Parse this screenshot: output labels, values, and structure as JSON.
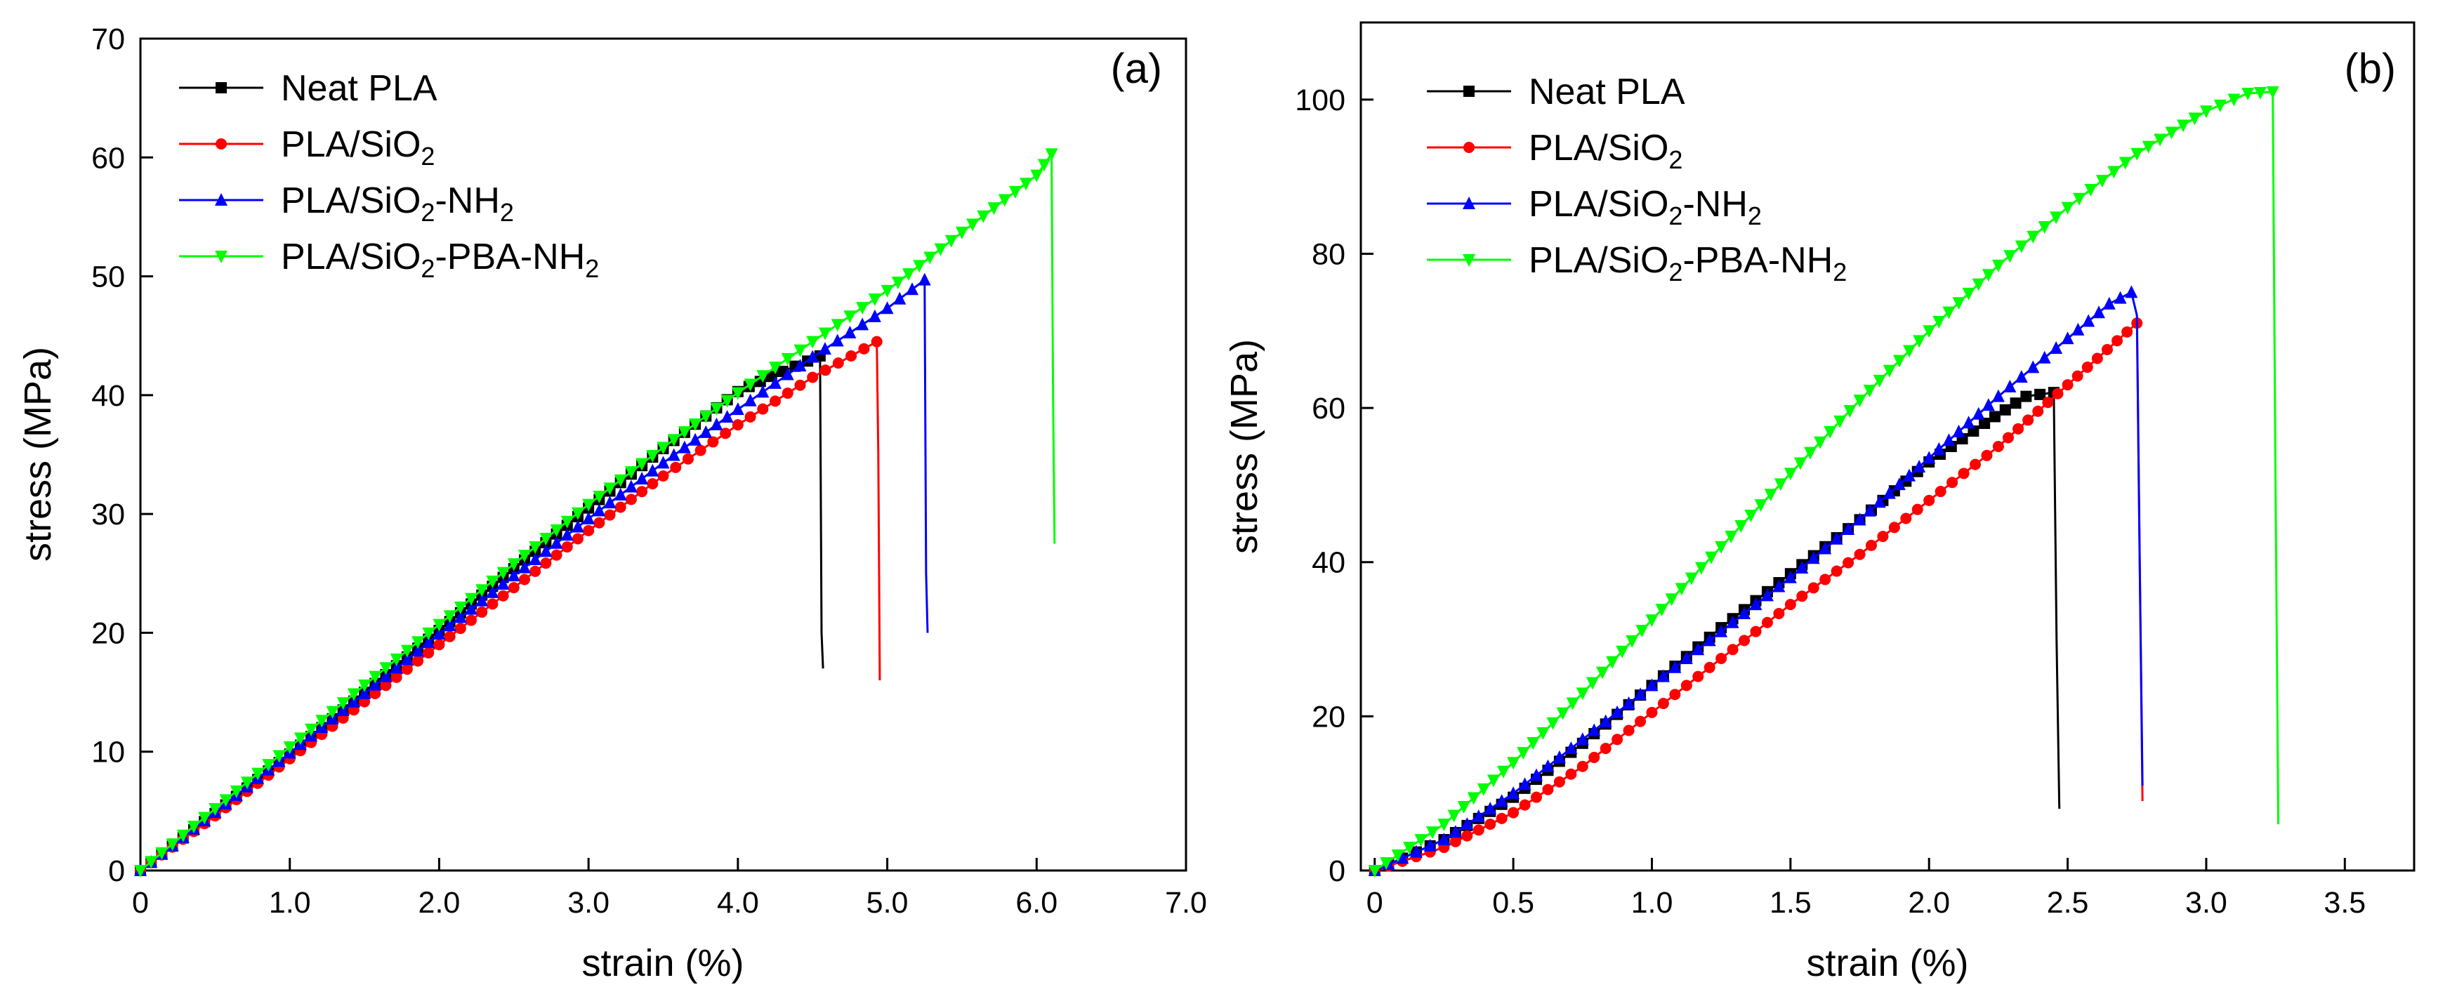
{
  "chart_data": [
    {
      "type": "line",
      "panel_label": "(a)",
      "xlabel": "strain (%)",
      "ylabel": "stress (MPa)",
      "xlim": [
        0,
        7.0
      ],
      "ylim": [
        0,
        70
      ],
      "xticks": [
        0,
        1.0,
        2.0,
        3.0,
        4.0,
        5.0,
        6.0,
        7.0
      ],
      "xtick_labels": [
        "0",
        "1.0",
        "2.0",
        "3.0",
        "4.0",
        "5.0",
        "6.0",
        "7.0"
      ],
      "yticks": [
        0,
        10,
        20,
        30,
        40,
        50,
        60,
        70
      ],
      "ytick_labels": [
        "0",
        "10",
        "20",
        "30",
        "40",
        "50",
        "60",
        "70"
      ],
      "grid": false,
      "legend_position": "top-left",
      "series": [
        {
          "key": "neat-pla",
          "name": "Neat PLA",
          "legend": [
            {
              "t": "Neat PLA"
            }
          ],
          "color": "#000000",
          "marker": "square",
          "x": [
            0,
            0.5,
            1.0,
            1.5,
            2.0,
            2.5,
            3.0,
            3.5,
            4.0,
            4.3,
            4.55,
            4.56,
            4.57
          ],
          "y": [
            0,
            4.8,
            9.8,
            15.0,
            20.2,
            25.4,
            30.5,
            35.5,
            40.3,
            42.0,
            43.3,
            20.0,
            17.0
          ]
        },
        {
          "key": "pla-sio2",
          "name": "PLA/SiO2",
          "legend": [
            {
              "t": "PLA/SiO"
            },
            {
              "t": "2",
              "sub": true
            }
          ],
          "color": "#ff0000",
          "marker": "circle",
          "x": [
            0,
            0.5,
            1.0,
            1.5,
            2.0,
            2.5,
            3.0,
            3.5,
            4.0,
            4.5,
            4.93,
            4.94,
            4.95
          ],
          "y": [
            0,
            4.6,
            9.4,
            14.2,
            19.0,
            23.8,
            28.6,
            33.2,
            37.5,
            41.5,
            44.5,
            35.0,
            16.0
          ]
        },
        {
          "key": "pla-sio2-nh2",
          "name": "PLA/SiO2-NH2",
          "legend": [
            {
              "t": "PLA/SiO"
            },
            {
              "t": "2",
              "sub": true
            },
            {
              "t": "-NH"
            },
            {
              "t": "2",
              "sub": true
            }
          ],
          "color": "#0000ff",
          "marker": "triangle-up",
          "x": [
            0,
            0.5,
            1.0,
            1.5,
            2.0,
            2.5,
            3.0,
            3.5,
            4.0,
            4.5,
            5.0,
            5.25,
            5.26,
            5.27
          ],
          "y": [
            0,
            4.9,
            9.9,
            14.9,
            19.9,
            24.8,
            29.6,
            34.3,
            38.8,
            43.2,
            47.3,
            49.7,
            25.0,
            20.0
          ]
        },
        {
          "key": "pla-sio2-pba-nh2",
          "name": "PLA/SiO2-PBA-NH2",
          "legend": [
            {
              "t": "PLA/SiO"
            },
            {
              "t": "2",
              "sub": true
            },
            {
              "t": "-PBA-NH"
            },
            {
              "t": "2",
              "sub": true
            }
          ],
          "color": "#00ff00",
          "marker": "triangle-down",
          "x": [
            0,
            0.5,
            1.0,
            1.5,
            2.0,
            2.5,
            3.0,
            3.5,
            4.0,
            4.5,
            5.0,
            5.5,
            6.0,
            6.1,
            6.11,
            6.12
          ],
          "y": [
            0,
            5.2,
            10.4,
            15.6,
            20.7,
            25.8,
            30.8,
            35.6,
            40.2,
            44.5,
            48.8,
            53.7,
            58.5,
            60.3,
            40.0,
            27.5
          ]
        }
      ]
    },
    {
      "type": "line",
      "panel_label": "(b)",
      "xlabel": "strain (%)",
      "ylabel": "stress (MPa)",
      "xlim": [
        -0.05,
        3.75
      ],
      "ylim": [
        0,
        110
      ],
      "xticks": [
        0,
        0.5,
        1.0,
        1.5,
        2.0,
        2.5,
        3.0,
        3.5
      ],
      "xtick_labels": [
        "0",
        "0.5",
        "1.0",
        "1.5",
        "2.0",
        "2.5",
        "3.0",
        "3.5"
      ],
      "yticks": [
        0,
        20,
        40,
        60,
        80,
        100
      ],
      "ytick_labels": [
        "0",
        "20",
        "40",
        "60",
        "80",
        "100"
      ],
      "grid": false,
      "legend_position": "top-left",
      "series": [
        {
          "key": "neat-pla",
          "name": "Neat PLA",
          "legend": [
            {
              "t": "Neat PLA"
            }
          ],
          "color": "#000000",
          "marker": "square",
          "x": [
            0,
            0.25,
            0.5,
            0.75,
            1.0,
            1.25,
            1.5,
            1.75,
            2.0,
            2.2,
            2.35,
            2.45,
            2.46,
            2.47
          ],
          "y": [
            0,
            4.0,
            9.5,
            16.5,
            24.0,
            31.5,
            38.5,
            45.5,
            53.0,
            58.0,
            61.5,
            62.0,
            30.0,
            8.0
          ]
        },
        {
          "key": "pla-sio2",
          "name": "PLA/SiO2",
          "legend": [
            {
              "t": "PLA/SiO"
            },
            {
              "t": "2",
              "sub": true
            }
          ],
          "color": "#ff0000",
          "marker": "circle",
          "x": [
            0,
            0.25,
            0.5,
            0.75,
            1.0,
            1.25,
            1.5,
            1.75,
            2.0,
            2.25,
            2.5,
            2.75,
            2.76,
            2.77
          ],
          "y": [
            0,
            3.0,
            7.5,
            13.5,
            20.5,
            27.5,
            34.5,
            41.0,
            48.0,
            55.0,
            63.0,
            71.0,
            40.0,
            9.0
          ]
        },
        {
          "key": "pla-sio2-nh2",
          "name": "PLA/SiO2-NH2",
          "legend": [
            {
              "t": "PLA/SiO"
            },
            {
              "t": "2",
              "sub": true
            },
            {
              "t": "-NH"
            },
            {
              "t": "2",
              "sub": true
            }
          ],
          "color": "#0000ff",
          "marker": "triangle-up",
          "x": [
            0,
            0.25,
            0.5,
            0.75,
            1.0,
            1.25,
            1.5,
            1.75,
            2.0,
            2.25,
            2.5,
            2.65,
            2.73,
            2.75,
            2.76,
            2.77
          ],
          "y": [
            0,
            4.0,
            10.0,
            17.0,
            24.0,
            31.0,
            38.0,
            45.5,
            53.5,
            61.5,
            69.0,
            73.5,
            75.0,
            72.0,
            40.0,
            11.0
          ]
        },
        {
          "key": "pla-sio2-pba-nh2",
          "name": "PLA/SiO2-PBA-NH2",
          "legend": [
            {
              "t": "PLA/SiO"
            },
            {
              "t": "2",
              "sub": true
            },
            {
              "t": "-PBA-NH"
            },
            {
              "t": "2",
              "sub": true
            }
          ],
          "color": "#00ff00",
          "marker": "triangle-down",
          "x": [
            0,
            0.25,
            0.5,
            0.75,
            1.0,
            1.25,
            1.5,
            1.75,
            2.0,
            2.25,
            2.5,
            2.75,
            3.0,
            3.15,
            3.24,
            3.25,
            3.26
          ],
          "y": [
            0,
            6.0,
            14.0,
            23.0,
            32.5,
            42.0,
            51.5,
            61.0,
            70.0,
            78.5,
            86.0,
            93.0,
            98.5,
            100.8,
            101.0,
            50.0,
            6.0
          ]
        }
      ]
    }
  ]
}
